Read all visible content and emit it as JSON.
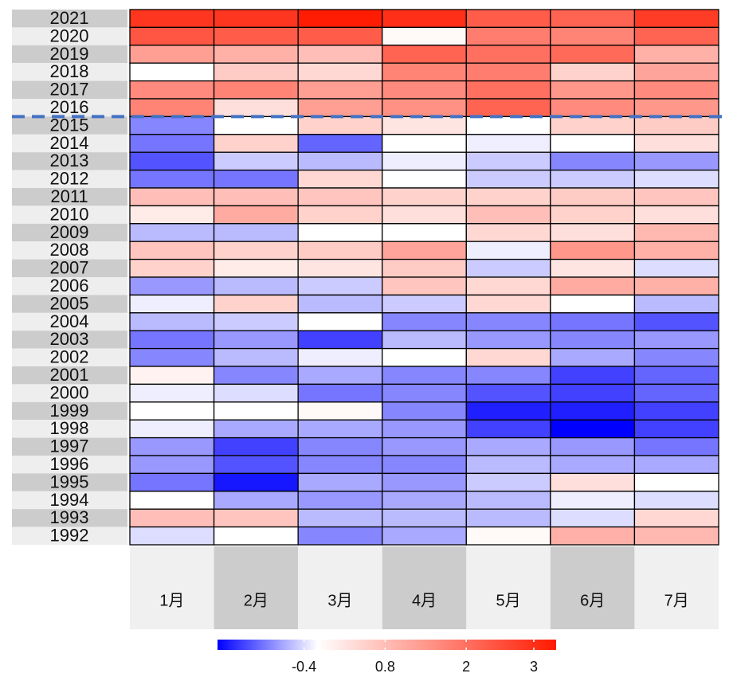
{
  "chart_data": {
    "type": "heatmap",
    "rows": [
      "2021",
      "2020",
      "2019",
      "2018",
      "2017",
      "2016",
      "2015",
      "2014",
      "2013",
      "2012",
      "2011",
      "2010",
      "2009",
      "2008",
      "2007",
      "2006",
      "2005",
      "2004",
      "2003",
      "2002",
      "2001",
      "2000",
      "1999",
      "1998",
      "1997",
      "1996",
      "1995",
      "1994",
      "1993",
      "1992"
    ],
    "columns": [
      "1月",
      "2月",
      "3月",
      "4月",
      "5月",
      "6月",
      "7月"
    ],
    "values": [
      [
        2.9,
        2.9,
        3.3,
        3.0,
        2.3,
        2.2,
        2.8
      ],
      [
        2.4,
        2.3,
        2.3,
        -0.1,
        1.8,
        1.7,
        2.2
      ],
      [
        1.3,
        1.0,
        0.8,
        2.2,
        2.0,
        2.1,
        1.0
      ],
      [
        -0.2,
        0.6,
        0.4,
        1.7,
        1.8,
        0.5,
        1.2
      ],
      [
        1.6,
        1.7,
        1.3,
        1.6,
        2.0,
        1.4,
        1.6
      ],
      [
        1.7,
        0.3,
        1.3,
        1.5,
        2.2,
        1.6,
        1.4
      ],
      [
        -0.9,
        -0.2,
        0.5,
        0.2,
        -0.2,
        0.5,
        0.6
      ],
      [
        -1.0,
        0.5,
        -1.1,
        -0.2,
        -0.3,
        -0.2,
        0.3
      ],
      [
        -1.2,
        -0.5,
        -0.6,
        -0.3,
        -0.5,
        -0.9,
        -0.8
      ],
      [
        -1.0,
        -1.0,
        0.4,
        -0.2,
        -0.5,
        -0.5,
        -0.4
      ],
      [
        0.8,
        0.8,
        0.7,
        0.5,
        0.5,
        0.6,
        0.7
      ],
      [
        0.1,
        1.1,
        0.5,
        0.3,
        0.8,
        0.5,
        0.3
      ],
      [
        -0.6,
        -0.6,
        -0.2,
        -0.2,
        0.4,
        0.3,
        0.9
      ],
      [
        0.7,
        0.5,
        0.6,
        1.2,
        -0.3,
        1.4,
        1.0
      ],
      [
        0.5,
        0.1,
        0.2,
        0.6,
        -0.5,
        0.2,
        -0.4
      ],
      [
        -0.8,
        -0.6,
        -0.5,
        0.7,
        0.4,
        1.1,
        1.0
      ],
      [
        -0.3,
        0.5,
        -0.6,
        -0.5,
        0.4,
        -0.2,
        -0.6
      ],
      [
        -0.6,
        -0.5,
        -0.2,
        -0.9,
        -0.9,
        -1.0,
        -1.2
      ],
      [
        -1.0,
        -0.8,
        -1.3,
        -0.6,
        -0.8,
        -0.9,
        -0.8
      ],
      [
        -0.9,
        -0.6,
        -0.3,
        -0.2,
        0.4,
        -0.7,
        -0.9
      ],
      [
        0.0,
        -0.9,
        -0.7,
        -0.9,
        -0.9,
        -1.3,
        -1.1
      ],
      [
        -0.3,
        -0.4,
        -1.0,
        -0.9,
        -1.2,
        -1.3,
        -1.1
      ],
      [
        -0.2,
        -0.2,
        -0.1,
        -0.9,
        -1.5,
        -1.5,
        -1.3
      ],
      [
        -0.3,
        -0.7,
        -0.7,
        -0.8,
        -1.3,
        -1.7,
        -1.3
      ],
      [
        -0.8,
        -1.3,
        -0.9,
        -0.8,
        -0.7,
        -0.8,
        -1.0
      ],
      [
        -0.8,
        -1.2,
        -0.9,
        -0.9,
        -0.6,
        -0.7,
        -0.7
      ],
      [
        -1.0,
        -1.55,
        -0.7,
        -0.8,
        -0.5,
        0.3,
        -0.2
      ],
      [
        -0.2,
        -0.7,
        -0.8,
        -0.7,
        -0.6,
        -0.3,
        -0.4
      ],
      [
        0.8,
        0.7,
        -0.6,
        -0.6,
        -0.6,
        -0.4,
        0.4
      ],
      [
        -0.4,
        -0.2,
        -0.9,
        -0.7,
        -0.1,
        1.0,
        0.9
      ]
    ],
    "colorbar": {
      "lim": [
        -1.68,
        3.33
      ],
      "mid": -0.2,
      "ticks": [
        -0.4,
        0.8,
        2.0,
        3.0
      ],
      "low_color": "#0000ff",
      "mid_color": "#ffffff",
      "high_color": "#ff1a00"
    }
  }
}
